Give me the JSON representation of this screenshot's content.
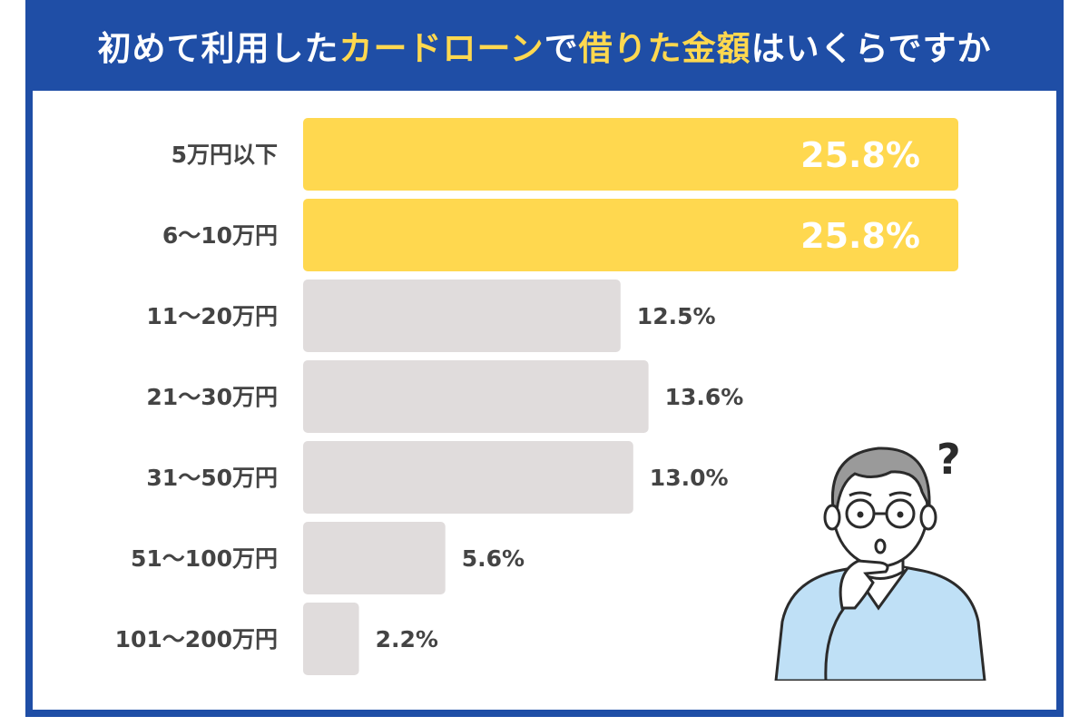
{
  "title": {
    "part1": "初めて利用した",
    "part2": "カードローン",
    "part3": "で",
    "part4": "借りた金額",
    "part5": "はいくらですか"
  },
  "colors": {
    "frame": "#1f4ea6",
    "highlight_bar": "#ffd84f",
    "normal_bar": "#e0dcdc",
    "title_highlight": "#ffd84f",
    "label": "#444444"
  },
  "chart_data": {
    "type": "bar",
    "orientation": "horizontal",
    "categories": [
      "5万円以下",
      "6〜10万円",
      "11〜20万円",
      "21〜30万円",
      "31〜50万円",
      "51〜100万円",
      "101〜200万円"
    ],
    "values": [
      25.8,
      25.8,
      12.5,
      13.6,
      13.0,
      5.6,
      2.2
    ],
    "labels": [
      "25.8%",
      "25.8%",
      "12.5%",
      "13.6%",
      "13.0%",
      "5.6%",
      "2.2%"
    ],
    "highlighted": [
      true,
      true,
      false,
      false,
      false,
      false,
      false
    ],
    "title": "初めて利用したカードローンで借りた金額はいくらですか",
    "xlabel": "",
    "ylabel": "",
    "xlim": [
      0,
      25.8
    ],
    "grid": false,
    "legend": "none"
  },
  "illustration": {
    "icon": "thinking-man-icon",
    "symbol": "?"
  }
}
